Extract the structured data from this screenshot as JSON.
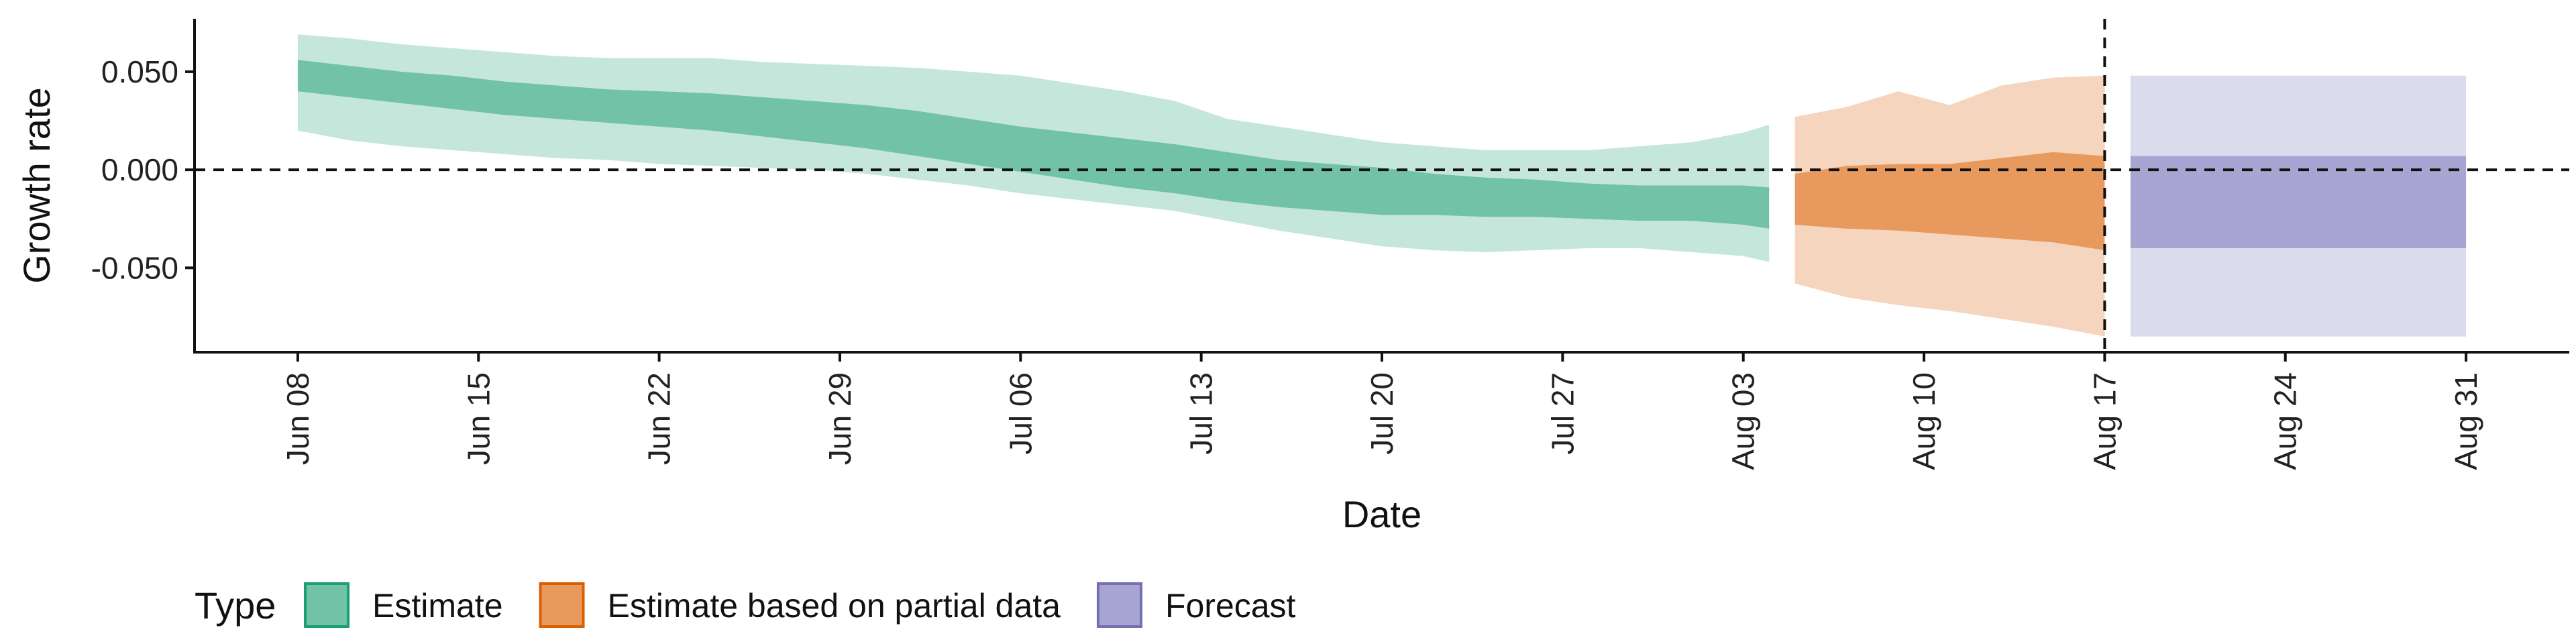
{
  "chart_data": {
    "type": "area",
    "title": "",
    "xlabel": "Date",
    "ylabel": "Growth rate",
    "x_ticks": [
      "Jun 08",
      "Jun 15",
      "Jun 22",
      "Jun 29",
      "Jul 06",
      "Jul 13",
      "Jul 20",
      "Jul 27",
      "Aug 03",
      "Aug 10",
      "Aug 17",
      "Aug 24",
      "Aug 31"
    ],
    "y_ticks": [
      "0.050",
      "0.000",
      "-0.050"
    ],
    "ylim": [
      -0.093,
      0.077
    ],
    "xlim": [
      "2020-06-04",
      "2020-09-04"
    ],
    "reference_hline": 0,
    "reference_vline": "Aug 17",
    "grid": false,
    "legend": {
      "title": "Type",
      "placement": "bottom",
      "entries": [
        {
          "label": "Estimate",
          "color": "#1b9e77"
        },
        {
          "label": "Estimate based on partial data",
          "color": "#d95f02"
        },
        {
          "label": "Forecast",
          "color": "#7570b3"
        }
      ]
    },
    "series": [
      {
        "name": "Estimate",
        "color": "#1b9e77",
        "fill_inner": "#72c2a8",
        "fill_outer": "#c5e6db",
        "dates": [
          "Jun 08",
          "Jun 10",
          "Jun 12",
          "Jun 14",
          "Jun 16",
          "Jun 18",
          "Jun 20",
          "Jun 22",
          "Jun 24",
          "Jun 26",
          "Jun 28",
          "Jun 30",
          "Jul 02",
          "Jul 04",
          "Jul 06",
          "Jul 08",
          "Jul 10",
          "Jul 12",
          "Jul 14",
          "Jul 16",
          "Jul 18",
          "Jul 20",
          "Jul 22",
          "Jul 24",
          "Jul 26",
          "Jul 28",
          "Jul 30",
          "Aug 01",
          "Aug 03",
          "Aug 04"
        ],
        "outer_upper": [
          0.069,
          0.067,
          0.064,
          0.062,
          0.06,
          0.058,
          0.057,
          0.057,
          0.057,
          0.055,
          0.054,
          0.053,
          0.052,
          0.05,
          0.048,
          0.044,
          0.04,
          0.035,
          0.026,
          0.022,
          0.018,
          0.014,
          0.012,
          0.01,
          0.01,
          0.01,
          0.012,
          0.014,
          0.019,
          0.023
        ],
        "inner_upper": [
          0.056,
          0.053,
          0.05,
          0.048,
          0.045,
          0.043,
          0.041,
          0.04,
          0.039,
          0.037,
          0.035,
          0.033,
          0.03,
          0.026,
          0.022,
          0.019,
          0.016,
          0.013,
          0.009,
          0.005,
          0.003,
          0.001,
          -0.002,
          -0.004,
          -0.005,
          -0.007,
          -0.008,
          -0.008,
          -0.008,
          -0.009
        ],
        "inner_lower": [
          0.04,
          0.037,
          0.034,
          0.031,
          0.028,
          0.026,
          0.024,
          0.022,
          0.02,
          0.017,
          0.014,
          0.011,
          0.007,
          0.003,
          -0.001,
          -0.005,
          -0.009,
          -0.012,
          -0.016,
          -0.019,
          -0.021,
          -0.023,
          -0.023,
          -0.024,
          -0.024,
          -0.025,
          -0.026,
          -0.026,
          -0.028,
          -0.03
        ],
        "outer_lower": [
          0.02,
          0.015,
          0.012,
          0.01,
          0.008,
          0.006,
          0.005,
          0.003,
          0.002,
          0.001,
          0.0,
          -0.002,
          -0.005,
          -0.008,
          -0.012,
          -0.015,
          -0.018,
          -0.021,
          -0.026,
          -0.031,
          -0.035,
          -0.039,
          -0.041,
          -0.042,
          -0.041,
          -0.04,
          -0.04,
          -0.042,
          -0.044,
          -0.047
        ]
      },
      {
        "name": "Estimate based on partial data",
        "color": "#d95f02",
        "fill_inner": "#e89a5e",
        "fill_outer": "#f5d5be",
        "dates": [
          "Aug 05",
          "Aug 07",
          "Aug 09",
          "Aug 11",
          "Aug 13",
          "Aug 15",
          "Aug 17"
        ],
        "outer_upper": [
          0.027,
          0.032,
          0.04,
          0.033,
          0.043,
          0.047,
          0.048
        ],
        "inner_upper": [
          -0.002,
          0.002,
          0.003,
          0.003,
          0.006,
          0.009,
          0.007
        ],
        "inner_lower": [
          -0.028,
          -0.03,
          -0.031,
          -0.033,
          -0.035,
          -0.037,
          -0.041
        ],
        "outer_lower": [
          -0.058,
          -0.065,
          -0.069,
          -0.072,
          -0.076,
          -0.08,
          -0.085
        ]
      },
      {
        "name": "Forecast",
        "color": "#7570b3",
        "fill_inner": "#a8a5d2",
        "fill_outer": "#dcdbec",
        "dates": [
          "Aug 18",
          "Aug 31"
        ],
        "outer_upper": [
          0.048,
          0.048
        ],
        "inner_upper": [
          0.007,
          0.007
        ],
        "inner_lower": [
          -0.04,
          -0.04
        ],
        "outer_lower": [
          -0.085,
          -0.085
        ]
      }
    ]
  }
}
